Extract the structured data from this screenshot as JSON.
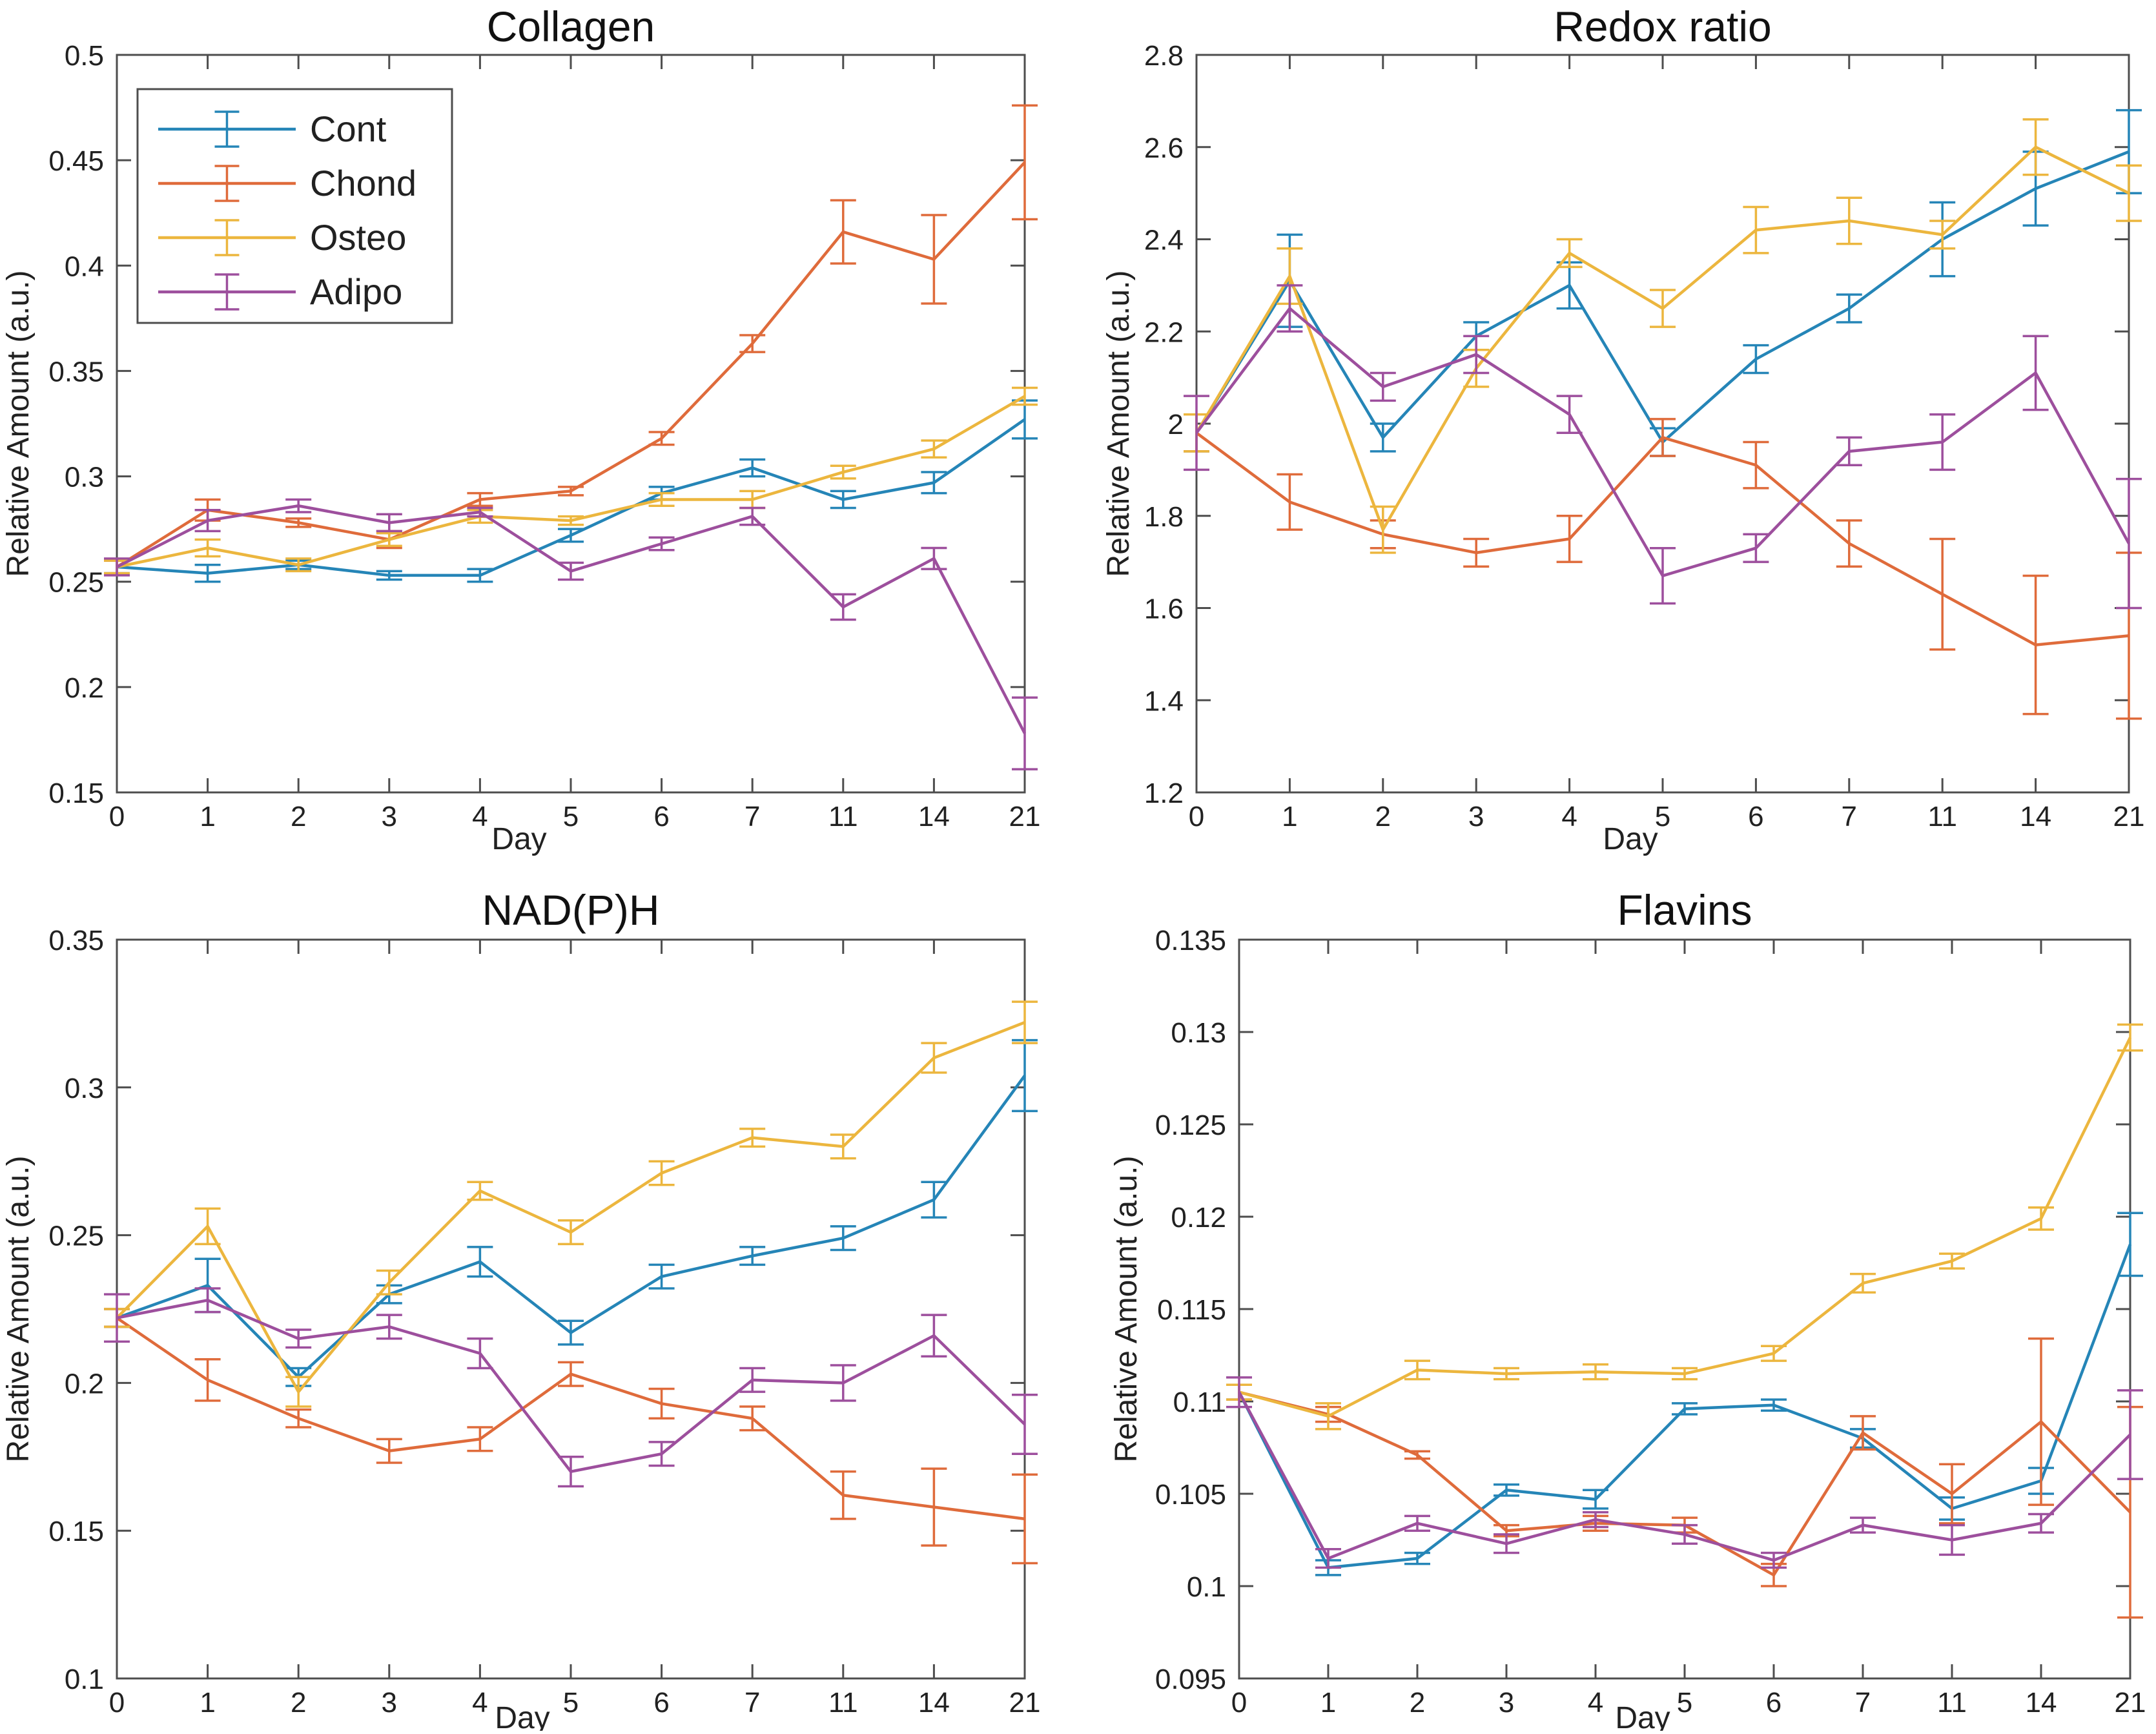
{
  "figure": {
    "background": "#ffffff",
    "description": "2x2 grid of MATLAB-style error-bar line charts"
  },
  "palette": {
    "cont": "#2585B7",
    "chond": "#DF6B3B",
    "osteo": "#ECB63E",
    "adipo": "#9D4F9D",
    "axis": "#4D4D4D",
    "text": "#212121"
  },
  "legend": {
    "entries": [
      "Cont",
      "Chond",
      "Osteo",
      "Adipo"
    ],
    "position": "top-left-inside-first-chart"
  },
  "chart_data": [
    {
      "id": "collagen",
      "type": "line",
      "title": "Collagen",
      "xlabel": "Day",
      "ylabel": "Relative Amount (a.u.)",
      "categories": [
        "0",
        "1",
        "2",
        "3",
        "4",
        "5",
        "6",
        "7",
        "11",
        "14",
        "21"
      ],
      "ylim": [
        0.15,
        0.5
      ],
      "yticks": [
        "0.15",
        "0.2",
        "0.25",
        "0.3",
        "0.35",
        "0.4",
        "0.45",
        "0.5"
      ],
      "ytick_values": [
        0.15,
        0.2,
        0.25,
        0.3,
        0.35,
        0.4,
        0.45,
        0.5
      ],
      "grid": false,
      "error_bars": true,
      "show_legend": true,
      "series": [
        {
          "name": "Cont",
          "color": "cont",
          "values": [
            0.257,
            0.254,
            0.258,
            0.253,
            0.253,
            0.272,
            0.292,
            0.304,
            0.289,
            0.297,
            0.327
          ],
          "errors": [
            0.003,
            0.004,
            0.002,
            0.002,
            0.003,
            0.003,
            0.003,
            0.004,
            0.004,
            0.005,
            0.009
          ]
        },
        {
          "name": "Chond",
          "color": "chond",
          "values": [
            0.257,
            0.284,
            0.278,
            0.27,
            0.289,
            0.293,
            0.318,
            0.363,
            0.416,
            0.403,
            0.449
          ],
          "errors": [
            0.003,
            0.005,
            0.002,
            0.004,
            0.003,
            0.002,
            0.003,
            0.004,
            0.015,
            0.021,
            0.027
          ]
        },
        {
          "name": "Osteo",
          "color": "osteo",
          "values": [
            0.257,
            0.266,
            0.258,
            0.27,
            0.281,
            0.279,
            0.289,
            0.289,
            0.302,
            0.313,
            0.338
          ],
          "errors": [
            0.003,
            0.004,
            0.003,
            0.003,
            0.003,
            0.002,
            0.003,
            0.004,
            0.003,
            0.004,
            0.004
          ]
        },
        {
          "name": "Adipo",
          "color": "adipo",
          "values": [
            0.257,
            0.279,
            0.286,
            0.278,
            0.283,
            0.255,
            0.268,
            0.281,
            0.238,
            0.261,
            0.178
          ],
          "errors": [
            0.004,
            0.005,
            0.003,
            0.004,
            0.002,
            0.004,
            0.003,
            0.004,
            0.006,
            0.005,
            0.017
          ]
        }
      ]
    },
    {
      "id": "redox",
      "type": "line",
      "title": "Redox ratio",
      "xlabel": "Day",
      "ylabel": "Relative Amount (a.u.)",
      "categories": [
        "0",
        "1",
        "2",
        "3",
        "4",
        "5",
        "6",
        "7",
        "11",
        "14",
        "21"
      ],
      "ylim": [
        1.2,
        2.8
      ],
      "yticks": [
        "1.2",
        "1.4",
        "1.6",
        "1.8",
        "2",
        "2.2",
        "2.4",
        "2.6",
        "2.8"
      ],
      "ytick_values": [
        1.2,
        1.4,
        1.6,
        1.8,
        2.0,
        2.2,
        2.4,
        2.6,
        2.8
      ],
      "grid": false,
      "error_bars": true,
      "show_legend": false,
      "series": [
        {
          "name": "Cont",
          "color": "cont",
          "values": [
            1.98,
            2.31,
            1.97,
            2.19,
            2.3,
            1.96,
            2.14,
            2.25,
            2.4,
            2.51,
            2.59
          ],
          "errors": [
            0.04,
            0.1,
            0.03,
            0.03,
            0.05,
            0.03,
            0.03,
            0.03,
            0.08,
            0.08,
            0.09
          ]
        },
        {
          "name": "Chond",
          "color": "chond",
          "values": [
            1.98,
            1.83,
            1.76,
            1.72,
            1.75,
            1.97,
            1.91,
            1.74,
            1.63,
            1.52,
            1.54
          ],
          "errors": [
            0.04,
            0.06,
            0.03,
            0.03,
            0.05,
            0.04,
            0.05,
            0.05,
            0.12,
            0.15,
            0.18
          ]
        },
        {
          "name": "Osteo",
          "color": "osteo",
          "values": [
            1.98,
            2.32,
            1.77,
            2.12,
            2.37,
            2.25,
            2.42,
            2.44,
            2.41,
            2.6,
            2.5
          ],
          "errors": [
            0.04,
            0.06,
            0.05,
            0.04,
            0.03,
            0.04,
            0.05,
            0.05,
            0.03,
            0.06,
            0.06
          ]
        },
        {
          "name": "Adipo",
          "color": "adipo",
          "values": [
            1.98,
            2.25,
            2.08,
            2.15,
            2.02,
            1.67,
            1.73,
            1.94,
            1.96,
            2.11,
            1.74
          ],
          "errors": [
            0.08,
            0.05,
            0.03,
            0.04,
            0.04,
            0.06,
            0.03,
            0.03,
            0.06,
            0.08,
            0.14
          ]
        }
      ]
    },
    {
      "id": "nadph",
      "type": "line",
      "title": "NAD(P)H",
      "xlabel": "Day",
      "ylabel": "Relative Amount (a.u.)",
      "categories": [
        "0",
        "1",
        "2",
        "3",
        "4",
        "5",
        "6",
        "7",
        "11",
        "14",
        "21"
      ],
      "ylim": [
        0.1,
        0.35
      ],
      "yticks": [
        "0.1",
        "0.15",
        "0.2",
        "0.25",
        "0.3",
        "0.35"
      ],
      "ytick_values": [
        0.1,
        0.15,
        0.2,
        0.25,
        0.3,
        0.35
      ],
      "grid": false,
      "error_bars": true,
      "show_legend": false,
      "series": [
        {
          "name": "Cont",
          "color": "cont",
          "values": [
            0.222,
            0.233,
            0.202,
            0.23,
            0.241,
            0.217,
            0.236,
            0.243,
            0.249,
            0.262,
            0.304
          ],
          "errors": [
            0.003,
            0.009,
            0.003,
            0.003,
            0.005,
            0.004,
            0.004,
            0.003,
            0.004,
            0.006,
            0.012
          ]
        },
        {
          "name": "Chond",
          "color": "chond",
          "values": [
            0.222,
            0.201,
            0.188,
            0.177,
            0.181,
            0.203,
            0.193,
            0.188,
            0.162,
            0.158,
            0.154
          ],
          "errors": [
            0.003,
            0.007,
            0.003,
            0.004,
            0.004,
            0.004,
            0.005,
            0.004,
            0.008,
            0.013,
            0.015
          ]
        },
        {
          "name": "Osteo",
          "color": "osteo",
          "values": [
            0.222,
            0.253,
            0.197,
            0.234,
            0.265,
            0.251,
            0.271,
            0.283,
            0.28,
            0.31,
            0.322
          ],
          "errors": [
            0.003,
            0.006,
            0.005,
            0.004,
            0.003,
            0.004,
            0.004,
            0.003,
            0.004,
            0.005,
            0.007
          ]
        },
        {
          "name": "Adipo",
          "color": "adipo",
          "values": [
            0.222,
            0.228,
            0.215,
            0.219,
            0.21,
            0.17,
            0.176,
            0.201,
            0.2,
            0.216,
            0.186
          ],
          "errors": [
            0.008,
            0.004,
            0.003,
            0.004,
            0.005,
            0.005,
            0.004,
            0.004,
            0.006,
            0.007,
            0.01
          ]
        }
      ]
    },
    {
      "id": "flavins",
      "type": "line",
      "title": "Flavins",
      "xlabel": "Day",
      "ylabel": "Relative Amount (a.u.)",
      "categories": [
        "0",
        "1",
        "2",
        "3",
        "4",
        "5",
        "6",
        "7",
        "11",
        "14",
        "21"
      ],
      "ylim": [
        0.095,
        0.135
      ],
      "yticks": [
        "0.095",
        "0.1",
        "0.105",
        "0.11",
        "0.115",
        "0.12",
        "0.125",
        "0.13",
        "0.135"
      ],
      "ytick_values": [
        0.095,
        0.1,
        0.105,
        0.11,
        0.115,
        0.12,
        0.125,
        0.13,
        0.135
      ],
      "grid": false,
      "error_bars": true,
      "show_legend": false,
      "series": [
        {
          "name": "Cont",
          "color": "cont",
          "values": [
            0.1105,
            0.101,
            0.1015,
            0.1052,
            0.1047,
            0.1096,
            0.1098,
            0.108,
            0.1042,
            0.1057,
            0.1185
          ],
          "errors": [
            0.0004,
            0.0004,
            0.0003,
            0.0003,
            0.0005,
            0.0003,
            0.0003,
            0.0005,
            0.0006,
            0.0007,
            0.0017
          ]
        },
        {
          "name": "Chond",
          "color": "chond",
          "values": [
            0.1105,
            0.1093,
            0.1071,
            0.103,
            0.1034,
            0.1033,
            0.1006,
            0.1083,
            0.105,
            0.1089,
            0.104
          ],
          "errors": [
            0.0004,
            0.0004,
            0.0002,
            0.0003,
            0.0004,
            0.0004,
            0.0006,
            0.0009,
            0.0016,
            0.0045,
            0.0057
          ]
        },
        {
          "name": "Osteo",
          "color": "osteo",
          "values": [
            0.1105,
            0.1092,
            0.1117,
            0.1115,
            0.1116,
            0.1115,
            0.1126,
            0.1164,
            0.1176,
            0.1199,
            0.1297
          ],
          "errors": [
            0.0004,
            0.0007,
            0.0005,
            0.0003,
            0.0004,
            0.0003,
            0.0004,
            0.0005,
            0.0004,
            0.0006,
            0.0007
          ]
        },
        {
          "name": "Adipo",
          "color": "adipo",
          "values": [
            0.1105,
            0.1015,
            0.1034,
            0.1023,
            0.1036,
            0.1028,
            0.1014,
            0.1033,
            0.1025,
            0.1034,
            0.1082
          ],
          "errors": [
            0.0008,
            0.0005,
            0.0004,
            0.0005,
            0.0004,
            0.0005,
            0.0004,
            0.0004,
            0.0008,
            0.0005,
            0.0024
          ]
        }
      ]
    }
  ]
}
